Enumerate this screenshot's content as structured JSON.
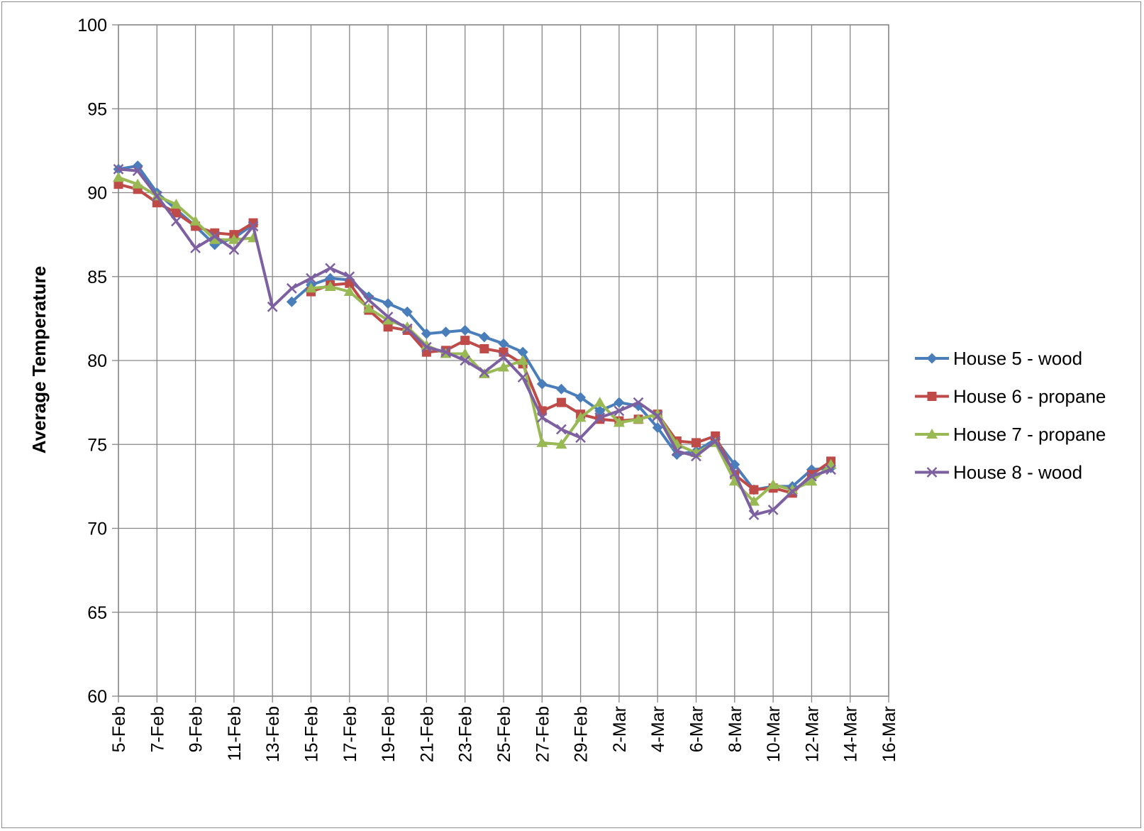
{
  "chart_data": {
    "type": "line",
    "ylabel": "Average Temperature",
    "xlabel": "",
    "ylim": [
      60,
      100
    ],
    "yticks": [
      "60",
      "65",
      "70",
      "75",
      "80",
      "85",
      "90",
      "95",
      "100"
    ],
    "xticks": [
      "5-Feb",
      "7-Feb",
      "9-Feb",
      "11-Feb",
      "13-Feb",
      "15-Feb",
      "17-Feb",
      "19-Feb",
      "21-Feb",
      "23-Feb",
      "25-Feb",
      "27-Feb",
      "29-Feb",
      "2-Mar",
      "4-Mar",
      "6-Mar",
      "8-Mar",
      "10-Mar",
      "12-Mar",
      "14-Mar",
      "16-Mar"
    ],
    "x_range": [
      "5-Feb",
      "16-Mar"
    ],
    "grid": true,
    "legend_position": "right",
    "x": [
      "5-Feb",
      "6-Feb",
      "7-Feb",
      "8-Feb",
      "9-Feb",
      "10-Feb",
      "11-Feb",
      "12-Feb",
      "13-Feb",
      "14-Feb",
      "15-Feb",
      "16-Feb",
      "17-Feb",
      "18-Feb",
      "19-Feb",
      "20-Feb",
      "21-Feb",
      "22-Feb",
      "23-Feb",
      "24-Feb",
      "25-Feb",
      "26-Feb",
      "27-Feb",
      "28-Feb",
      "29-Feb",
      "1-Mar",
      "2-Mar",
      "3-Mar",
      "4-Mar",
      "5-Mar",
      "6-Mar",
      "7-Mar",
      "8-Mar",
      "9-Mar",
      "10-Mar",
      "11-Mar",
      "12-Mar",
      "13-Mar"
    ],
    "series": [
      {
        "name": "House 5 - wood",
        "color": "#4a7ebb",
        "marker": "diamond",
        "values": [
          91.4,
          91.6,
          90.0,
          89.0,
          88.0,
          86.9,
          87.3,
          88.1,
          null,
          83.5,
          84.5,
          84.9,
          84.8,
          83.8,
          83.4,
          82.9,
          81.6,
          81.7,
          81.8,
          81.4,
          81.0,
          80.5,
          78.6,
          78.3,
          77.8,
          77.0,
          77.5,
          77.3,
          76.0,
          74.4,
          74.6,
          75.3,
          73.8,
          72.3,
          72.5,
          72.5,
          73.5,
          73.6
        ]
      },
      {
        "name": "House 6 - propane",
        "color": "#be4b48",
        "marker": "square",
        "values": [
          90.5,
          90.2,
          89.4,
          88.8,
          88.0,
          87.6,
          87.5,
          88.2,
          null,
          null,
          84.1,
          84.5,
          84.6,
          83.0,
          82.0,
          81.8,
          80.5,
          80.6,
          81.2,
          80.7,
          80.5,
          79.8,
          77.0,
          77.5,
          76.8,
          76.5,
          76.4,
          76.5,
          76.8,
          75.2,
          75.1,
          75.5,
          73.2,
          72.3,
          72.4,
          72.1,
          73.2,
          74.0
        ]
      },
      {
        "name": "House 7 - propane",
        "color": "#98b954",
        "marker": "triangle",
        "values": [
          90.9,
          90.5,
          89.8,
          89.3,
          88.3,
          87.2,
          87.2,
          87.3,
          null,
          null,
          84.3,
          84.4,
          84.1,
          83.1,
          82.4,
          82.0,
          80.9,
          80.4,
          80.4,
          79.2,
          79.6,
          80.0,
          75.1,
          75.0,
          76.6,
          77.5,
          76.3,
          76.5,
          76.8,
          75.0,
          74.5,
          75.1,
          72.8,
          71.6,
          72.6,
          72.3,
          72.8,
          73.8
        ]
      },
      {
        "name": "House 8 - wood",
        "color": "#7d60a0",
        "marker": "x",
        "values": [
          91.4,
          91.3,
          89.8,
          88.3,
          86.7,
          87.4,
          86.6,
          88.0,
          83.2,
          84.3,
          84.9,
          85.5,
          85.0,
          83.6,
          82.6,
          81.9,
          80.8,
          80.5,
          80.0,
          79.3,
          80.2,
          79.0,
          76.6,
          75.9,
          75.4,
          76.6,
          77.0,
          77.5,
          76.7,
          74.6,
          74.3,
          75.2,
          73.3,
          70.8,
          71.1,
          72.2,
          73.1,
          73.5
        ]
      }
    ]
  }
}
